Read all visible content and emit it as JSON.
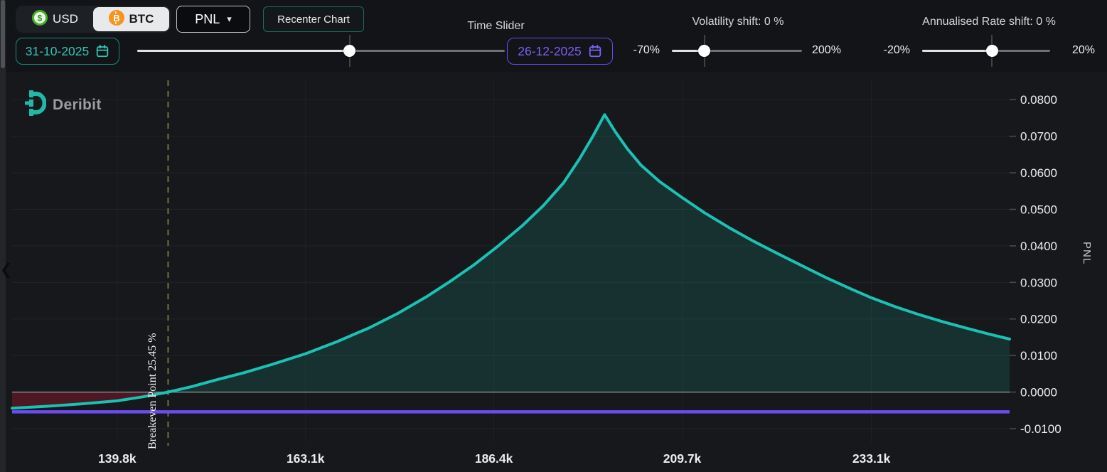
{
  "colors": {
    "background": "#17181b",
    "accent_teal": "#19c2b3",
    "accent_purple": "#6c4cf0",
    "positive_fill": "rgba(25,194,179,0.15)",
    "negative_fill": "rgba(178,24,52,0.35)",
    "breakeven_dash": "#6f7142",
    "date_start_accent": "#2cc8b4",
    "date_end_accent": "#7e5ef8",
    "usd_green": "#43b024",
    "btc_orange": "#f7941d"
  },
  "icons": {
    "caret_down": "▾",
    "chevron_left": "❮",
    "dollar": "$",
    "bitcoin": "B"
  },
  "toolbar": {
    "usd_label": "USD",
    "btc_label": "BTC",
    "pnl_label": "PNL",
    "recenter_label": "Recenter Chart"
  },
  "time_slider": {
    "label": "Time Slider",
    "start_date": "31-10-2025",
    "end_date": "26-12-2025",
    "fraction": 0.578
  },
  "volatility_slider": {
    "label": "Volatility shift: 0 %",
    "min_label": "-70%",
    "max_label": "200%",
    "fraction": 0.251
  },
  "rate_slider": {
    "label": "Annualised Rate shift: 0 %",
    "min_label": "-20%",
    "max_label": "20%",
    "fraction": 0.545
  },
  "watermark": {
    "brand": "Deribit"
  },
  "chart_data": {
    "type": "line",
    "title": "",
    "xlabel": "",
    "ylabel": "PNL",
    "legend": false,
    "grid": true,
    "xlim": [
      126.8,
      250.2
    ],
    "ylim": [
      -0.0137,
      0.0853
    ],
    "x_ticks": [
      {
        "label": "139.8k",
        "value": 139.8
      },
      {
        "label": "163.1k",
        "value": 163.1
      },
      {
        "label": "186.4k",
        "value": 186.4
      },
      {
        "label": "209.7k",
        "value": 209.7
      },
      {
        "label": "233.1k",
        "value": 233.1
      }
    ],
    "y_ticks": [
      {
        "label": "0.0800",
        "value": 0.08
      },
      {
        "label": "0.0700",
        "value": 0.07
      },
      {
        "label": "0.0600",
        "value": 0.06
      },
      {
        "label": "0.0500",
        "value": 0.05
      },
      {
        "label": "0.0400",
        "value": 0.04
      },
      {
        "label": "0.0300",
        "value": 0.03
      },
      {
        "label": "0.0200",
        "value": 0.02
      },
      {
        "label": "0.0100",
        "value": 0.01
      },
      {
        "label": "0.0000",
        "value": 0.0
      },
      {
        "label": "-0.0100",
        "value": -0.01
      }
    ],
    "series": [
      {
        "name": "pnl-curve",
        "type": "area-line",
        "color": "#19c2b3",
        "x_unit": "k USD underlying price",
        "points": [
          [
            126.8,
            -0.0044
          ],
          [
            131,
            -0.0039
          ],
          [
            135,
            -0.0033
          ],
          [
            139.8,
            -0.0024
          ],
          [
            143,
            -0.0013
          ],
          [
            146.1,
            0.0
          ],
          [
            149,
            0.0015
          ],
          [
            152,
            0.0033
          ],
          [
            155.5,
            0.0053
          ],
          [
            159,
            0.0076
          ],
          [
            163.1,
            0.0105
          ],
          [
            167,
            0.0138
          ],
          [
            171,
            0.0176
          ],
          [
            174.5,
            0.0215
          ],
          [
            178,
            0.026
          ],
          [
            181,
            0.0303
          ],
          [
            184,
            0.0349
          ],
          [
            187,
            0.0401
          ],
          [
            190,
            0.0457
          ],
          [
            192.5,
            0.051
          ],
          [
            195,
            0.0572
          ],
          [
            197,
            0.0638
          ],
          [
            198.7,
            0.0702
          ],
          [
            200.1,
            0.0759
          ],
          [
            201.4,
            0.0713
          ],
          [
            202.9,
            0.0666
          ],
          [
            204.6,
            0.0621
          ],
          [
            206.9,
            0.0576
          ],
          [
            209.7,
            0.0532
          ],
          [
            212.5,
            0.049
          ],
          [
            215.5,
            0.045
          ],
          [
            218.5,
            0.0413
          ],
          [
            221.5,
            0.0379
          ],
          [
            224.5,
            0.0346
          ],
          [
            227.5,
            0.0313
          ],
          [
            230.5,
            0.0283
          ],
          [
            233.1,
            0.0258
          ],
          [
            236,
            0.0234
          ],
          [
            239,
            0.0212
          ],
          [
            242,
            0.0192
          ],
          [
            245,
            0.0174
          ],
          [
            247.6,
            0.0159
          ],
          [
            250.2,
            0.0145
          ]
        ]
      },
      {
        "name": "expiry-pnl-line",
        "type": "hline",
        "color": "#6c4cf0",
        "value": -0.0054
      }
    ],
    "annotations": {
      "breakeven": {
        "value_k": 146.1,
        "label": "Breakeven Point 25.45 %"
      }
    }
  }
}
